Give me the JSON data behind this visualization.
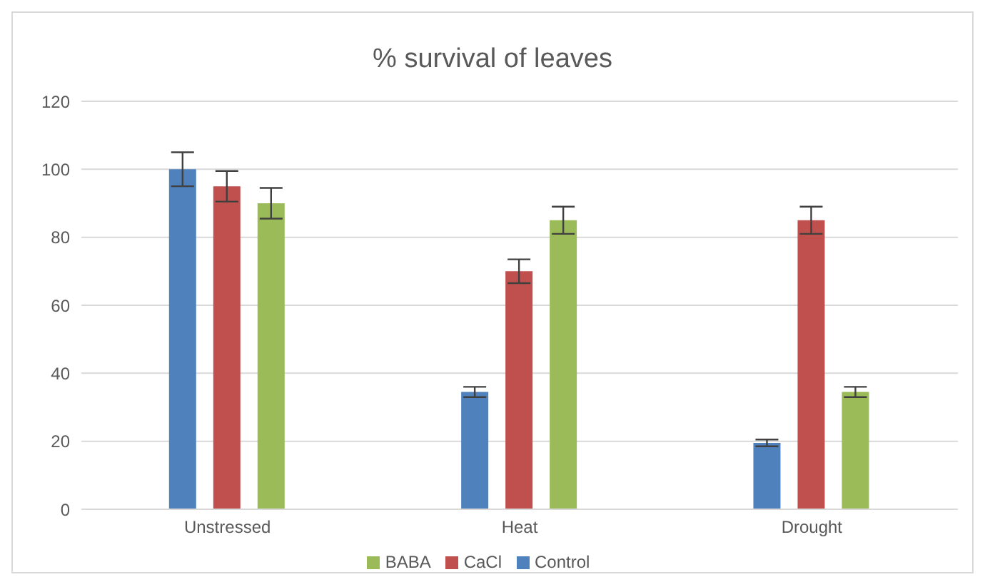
{
  "chart_data": {
    "type": "bar",
    "title": "% survival of leaves",
    "categories": [
      "Unstressed",
      "Heat",
      "Drought"
    ],
    "series": [
      {
        "name": "Control",
        "color": "#4f81bd",
        "values": [
          100,
          34.5,
          19.5
        ],
        "errors": [
          5,
          1.5,
          1
        ]
      },
      {
        "name": "CaCl",
        "color": "#c0504d",
        "values": [
          95,
          70,
          85
        ],
        "errors": [
          4.5,
          3.5,
          4
        ]
      },
      {
        "name": "BABA",
        "color": "#9bbb59",
        "values": [
          90,
          85,
          34.5
        ],
        "errors": [
          4.5,
          4,
          1.5
        ]
      }
    ],
    "ylim": [
      0,
      120
    ],
    "yticks": [
      0,
      20,
      40,
      60,
      80,
      100,
      120
    ],
    "grid": "y",
    "legend": "bottom"
  }
}
